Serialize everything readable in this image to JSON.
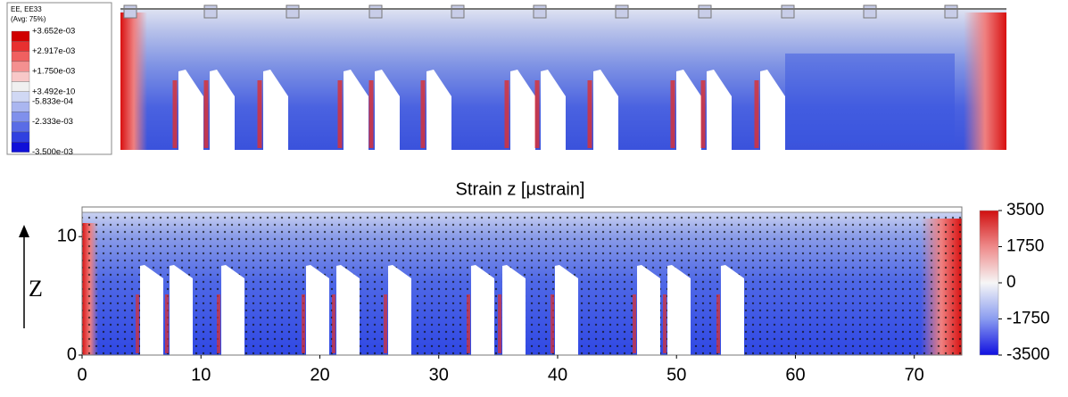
{
  "fe_legend": {
    "title": "EE, EE33",
    "subtitle": "(Avg: 75%)",
    "labels": [
      "+3.652e-03",
      "+2.917e-03",
      "+1.750e-03",
      "+3.492e-10",
      "-5.833e-04",
      "-2.333e-03",
      "-3.500e-03"
    ]
  },
  "dic_plot": {
    "title": "Strain z [μstrain]",
    "ylabel": "Z",
    "xlim": [
      0,
      74
    ],
    "xticks": [
      0,
      10,
      20,
      30,
      40,
      50,
      60,
      70
    ],
    "ylim": [
      0,
      12.5
    ],
    "yticks": [
      0,
      10
    ],
    "clim": [
      -3500,
      3500
    ],
    "cticks": [
      3500,
      1750,
      0,
      -1750,
      -3500
    ]
  }
}
